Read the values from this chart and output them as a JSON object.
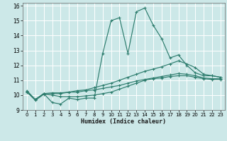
{
  "xlabel": "Humidex (Indice chaleur)",
  "xlim": [
    -0.5,
    23.5
  ],
  "ylim": [
    9,
    16.2
  ],
  "xticks": [
    0,
    1,
    2,
    3,
    4,
    5,
    6,
    7,
    8,
    9,
    10,
    11,
    12,
    13,
    14,
    15,
    16,
    17,
    18,
    19,
    20,
    21,
    22,
    23
  ],
  "yticks": [
    9,
    10,
    11,
    12,
    13,
    14,
    15,
    16
  ],
  "bg_color": "#cce8e8",
  "line_color": "#2e7d6e",
  "grid_color": "#ffffff",
  "lines": [
    {
      "x": [
        0,
        1,
        2,
        3,
        4,
        5,
        6,
        7,
        8,
        9,
        10,
        11,
        12,
        13,
        14,
        15,
        16,
        17,
        18,
        19,
        20,
        21,
        22,
        23
      ],
      "y": [
        10.3,
        9.7,
        10.1,
        9.5,
        9.4,
        9.8,
        9.7,
        9.8,
        9.8,
        12.8,
        15.0,
        15.2,
        12.8,
        15.6,
        15.85,
        14.7,
        13.8,
        12.5,
        12.7,
        12.0,
        11.5,
        11.3,
        11.3,
        11.2
      ]
    },
    {
      "x": [
        0,
        1,
        2,
        3,
        4,
        5,
        6,
        7,
        8,
        9,
        10,
        11,
        12,
        13,
        14,
        15,
        16,
        17,
        18,
        19,
        20,
        21,
        22,
        23
      ],
      "y": [
        10.25,
        9.7,
        10.1,
        10.15,
        10.15,
        10.2,
        10.3,
        10.35,
        10.5,
        10.65,
        10.8,
        11.0,
        11.2,
        11.4,
        11.6,
        11.75,
        11.9,
        12.1,
        12.3,
        12.1,
        11.85,
        11.4,
        11.3,
        11.2
      ]
    },
    {
      "x": [
        0,
        1,
        2,
        3,
        4,
        5,
        6,
        7,
        8,
        9,
        10,
        11,
        12,
        13,
        14,
        15,
        16,
        17,
        18,
        19,
        20,
        21,
        22,
        23
      ],
      "y": [
        10.25,
        9.7,
        10.1,
        10.1,
        10.1,
        10.2,
        10.2,
        10.3,
        10.35,
        10.45,
        10.55,
        10.65,
        10.8,
        10.95,
        11.05,
        11.15,
        11.25,
        11.35,
        11.45,
        11.4,
        11.3,
        11.15,
        11.1,
        11.1
      ]
    },
    {
      "x": [
        0,
        1,
        2,
        3,
        4,
        5,
        6,
        7,
        8,
        9,
        10,
        11,
        12,
        13,
        14,
        15,
        16,
        17,
        18,
        19,
        20,
        21,
        22,
        23
      ],
      "y": [
        10.2,
        9.65,
        10.05,
        10.0,
        9.9,
        9.9,
        9.9,
        9.95,
        10.0,
        10.1,
        10.2,
        10.4,
        10.6,
        10.8,
        11.0,
        11.1,
        11.15,
        11.25,
        11.3,
        11.3,
        11.2,
        11.1,
        11.05,
        11.05
      ]
    }
  ]
}
